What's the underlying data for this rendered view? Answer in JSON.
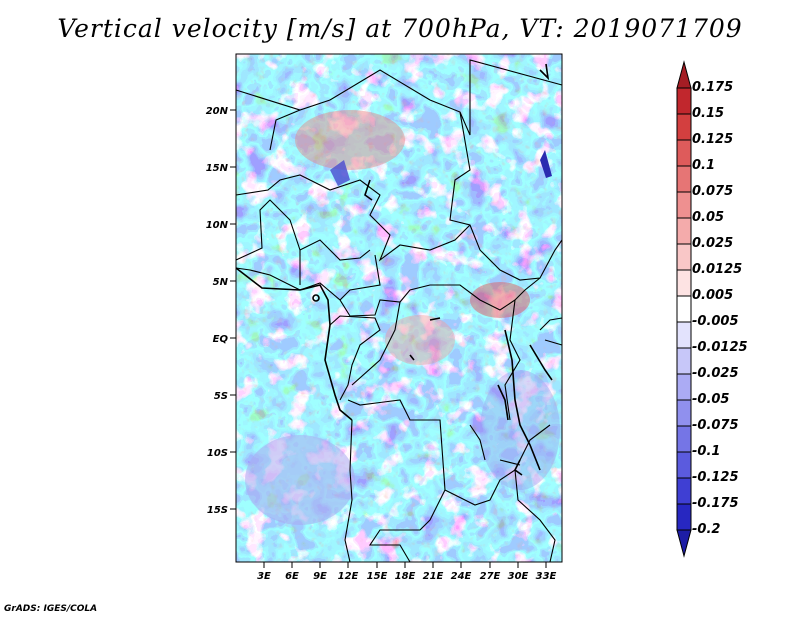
{
  "title": "Vertical velocity [m/s] at 700hPa, VT: 2019071709",
  "map": {
    "x_ticks": [
      "3E",
      "6E",
      "9E",
      "12E",
      "15E",
      "18E",
      "21E",
      "24E",
      "27E",
      "30E",
      "33E"
    ],
    "y_ticks": [
      "20N",
      "15N",
      "10N",
      "5N",
      "EQ",
      "5S",
      "10S",
      "15S"
    ]
  },
  "colorbar": {
    "labels": [
      "0.175",
      "0.15",
      "0.125",
      "0.1",
      "0.075",
      "0.05",
      "0.025",
      "0.0125",
      "0.005",
      "-0.005",
      "-0.0125",
      "-0.025",
      "-0.05",
      "-0.075",
      "-0.1",
      "-0.125",
      "-0.175",
      "-0.2"
    ],
    "colors": [
      "#a51d24",
      "#c1272d",
      "#d33f3f",
      "#de5b5b",
      "#e67575",
      "#ee9090",
      "#f4abab",
      "#f9c7c7",
      "#fde3e3",
      "#ffffff",
      "#e3e3fd",
      "#c7c7f9",
      "#ababf4",
      "#9090ee",
      "#7575e6",
      "#5b5bde",
      "#3f3fd3",
      "#2727c1",
      "#1d1da5"
    ]
  },
  "credit": "GrADS: IGES/COLA"
}
